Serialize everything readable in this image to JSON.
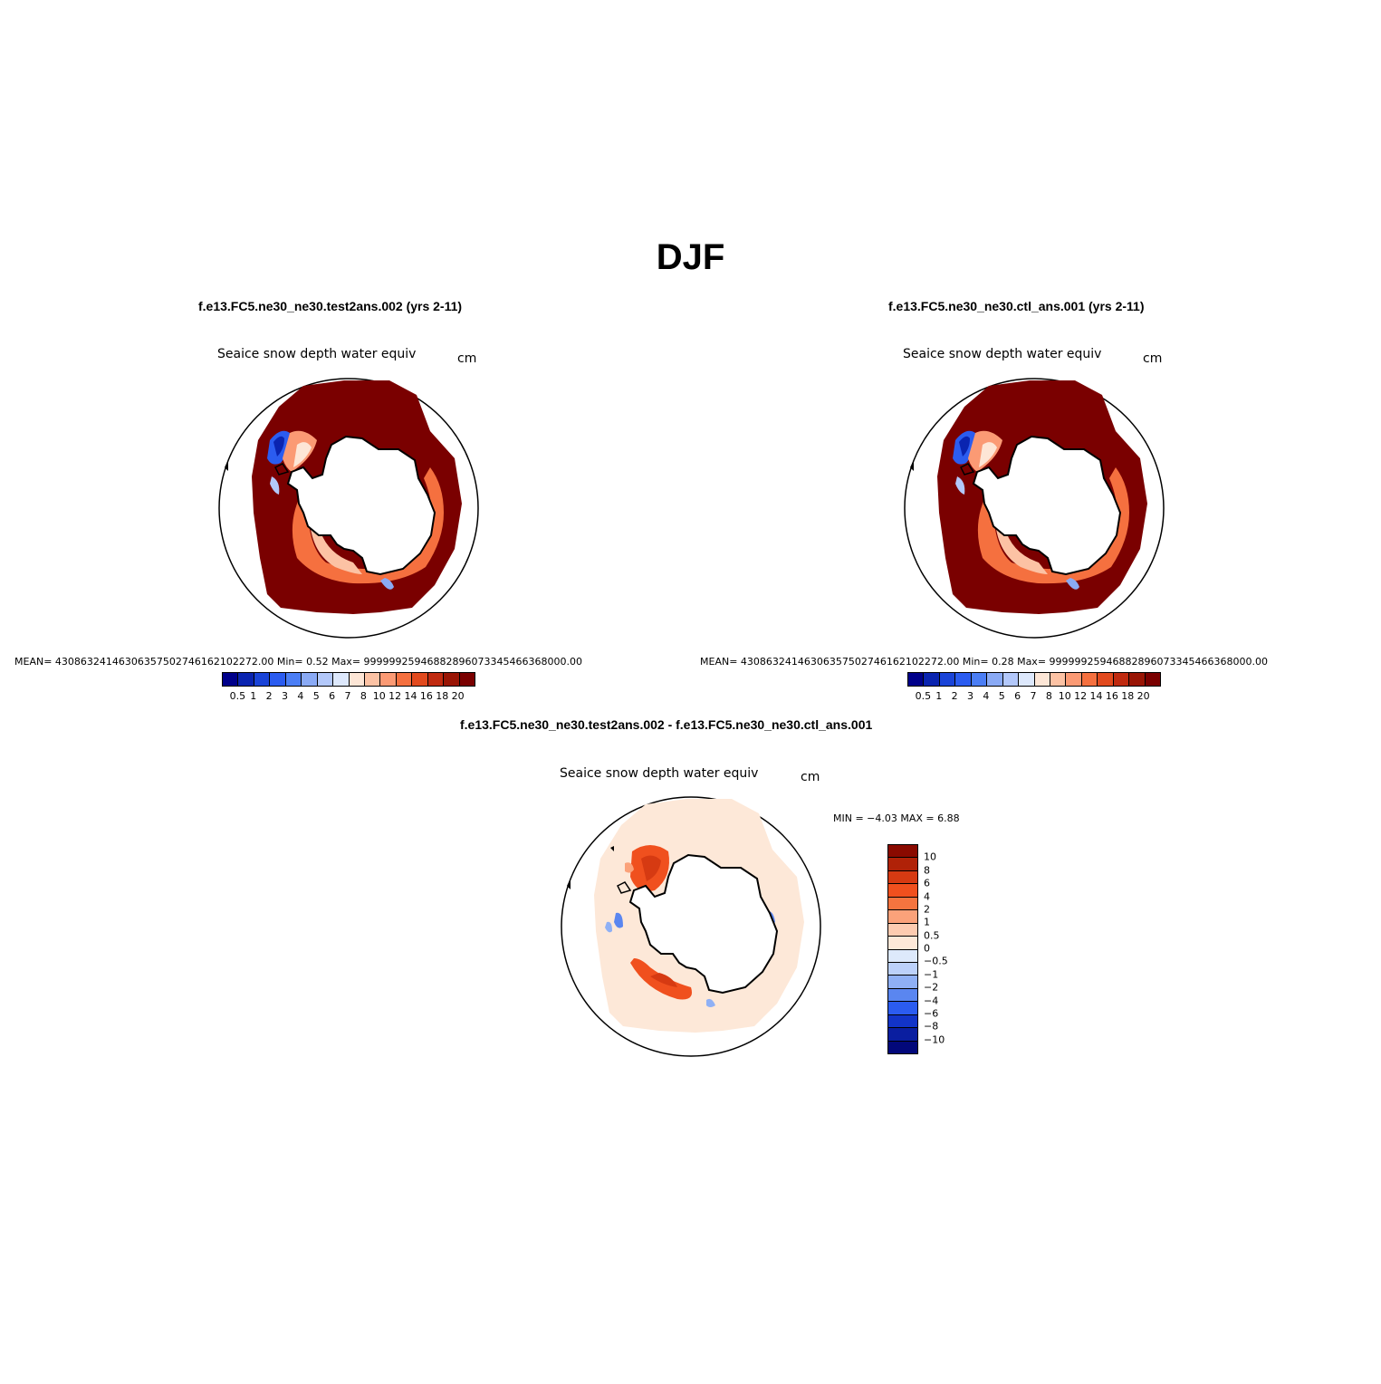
{
  "figure": {
    "title": "DJF"
  },
  "panels": [
    {
      "id": "test",
      "case_title": "f.e13.FC5.ne30_ne30.test2ans.002 (yrs 2-11)",
      "variable": "Seaice snow depth water equiv",
      "units": "cm",
      "stats": "MEAN= 43086324146306357502746162102272.00   Min=    0.52   Max=  99999925946882896073345466368000.00"
    },
    {
      "id": "ctl",
      "case_title": "f.e13.FC5.ne30_ne30.ctl_ans.001 (yrs 2-11)",
      "variable": "Seaice snow depth water equiv",
      "units": "cm",
      "stats": "MEAN= 43086324146306357502746162102272.00   Min=    0.28   Max=  99999925946882896073345466368000.00"
    },
    {
      "id": "diff",
      "case_title": "f.e13.FC5.ne30_ne30.test2ans.002 - f.e13.FC5.ne30_ne30.ctl_ans.001",
      "variable": "Seaice snow depth water equiv",
      "units": "cm",
      "stats": "MIN =   −4.03  MAX =    6.88"
    }
  ],
  "colorbars": {
    "absolute": {
      "labels": [
        "0.5",
        "1",
        "2",
        "3",
        "4",
        "5",
        "6",
        "7",
        "8",
        "10",
        "12",
        "14",
        "16",
        "18",
        "20"
      ],
      "colors": [
        "#00008a",
        "#0a24b0",
        "#1a44d8",
        "#2b5cf0",
        "#4b7ef5",
        "#8aaaf5",
        "#b3c8fa",
        "#dde8fc",
        "#fde6d6",
        "#fcc2a4",
        "#fb9a74",
        "#f5703f",
        "#e24a1e",
        "#c02a10",
        "#991505",
        "#7a0000"
      ]
    },
    "difference": {
      "labels": [
        "10",
        "8",
        "6",
        "4",
        "2",
        "1",
        "0.5",
        "0",
        "−0.5",
        "−1",
        "−2",
        "−4",
        "−6",
        "−8",
        "−10"
      ],
      "colors": [
        "#8a0a00",
        "#b02208",
        "#d63a12",
        "#f0501e",
        "#f5743f",
        "#fba27a",
        "#fdcbb0",
        "#fde8d8",
        "#dde9fb",
        "#bcd1fa",
        "#8fb0f5",
        "#5a86f0",
        "#2b5cf0",
        "#1234c8",
        "#0a1ea0",
        "#02087a"
      ]
    }
  }
}
